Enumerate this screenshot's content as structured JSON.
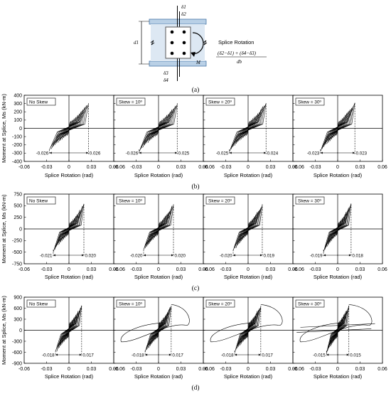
{
  "figure": {
    "panel_labels": [
      "(a)",
      "(b)",
      "(c)",
      "(d)"
    ]
  },
  "detail": {
    "title": "Splice Rotation",
    "formula_numerator": "(δ2−δ1) + (δ4−δ3)",
    "formula_denominator": "db",
    "labels": {
      "d1": "δ1",
      "d2": "δ2",
      "d3": "δ3",
      "d4": "δ4",
      "depth": "d1",
      "moment": "M"
    },
    "colors": {
      "flange_fill": "#b9d0e6",
      "flange_line": "#4a78a8",
      "plate": "#555555"
    }
  },
  "chart_data": [
    {
      "type": "line",
      "group": "(b)",
      "ylabel": "Moment at Splice, Ms (kN-m)",
      "xlabel": "Splice Rotation (rad)",
      "xlim": [
        -0.06,
        0.06
      ],
      "ylim": [
        -400,
        400
      ],
      "xticks": [
        "-0.06",
        "-0.03",
        "0",
        "0.03",
        "0.06"
      ],
      "yticks": [
        "400",
        "300",
        "200",
        "100",
        "0",
        "-100",
        "-200",
        "-300",
        "-400"
      ],
      "yticks_num": [
        400,
        300,
        200,
        100,
        0,
        -100,
        -200,
        -300,
        -400
      ],
      "grid": false,
      "panels": [
        {
          "label": "No Skew",
          "min_rot": "-0.026",
          "max_rot": "0.026",
          "min_val": -0.026,
          "max_val": 0.026,
          "peak": 320,
          "base": 80,
          "wild": false
        },
        {
          "label": "Skew = 10º",
          "min_rot": "-0.026",
          "max_rot": "0.025",
          "min_val": -0.026,
          "max_val": 0.025,
          "peak": 320,
          "base": 80,
          "wild": false
        },
        {
          "label": "Skew = 20º",
          "min_rot": "-0.025",
          "max_rot": "0.024",
          "min_val": -0.025,
          "max_val": 0.024,
          "peak": 320,
          "base": 80,
          "wild": false
        },
        {
          "label": "Skew = 30º",
          "min_rot": "-0.023",
          "max_rot": "0.023",
          "min_val": -0.023,
          "max_val": 0.023,
          "peak": 320,
          "base": 80,
          "wild": false
        }
      ]
    },
    {
      "type": "line",
      "group": "(c)",
      "ylabel": "Moment at Splice, Ms (kN-m)",
      "xlabel": "Splice Rotation (rad)",
      "xlim": [
        -0.06,
        0.06
      ],
      "ylim": [
        -750,
        750
      ],
      "xticks": [
        "-0.06",
        "-0.03",
        "0",
        "0.03",
        "0.06"
      ],
      "yticks": [
        "750",
        "500",
        "250",
        "0",
        "-250",
        "-500",
        "-750"
      ],
      "yticks_num": [
        750,
        500,
        250,
        0,
        -250,
        -500,
        -750
      ],
      "grid": false,
      "panels": [
        {
          "label": "No Skew",
          "min_rot": "-0.021",
          "max_rot": "0.020",
          "min_val": -0.021,
          "max_val": 0.02,
          "peak": 560,
          "base": 130,
          "wild": false
        },
        {
          "label": "Skew = 10º",
          "min_rot": "-0.020",
          "max_rot": "0.020",
          "min_val": -0.02,
          "max_val": 0.02,
          "peak": 560,
          "base": 130,
          "wild": false
        },
        {
          "label": "Skew = 20º",
          "min_rot": "-0.020",
          "max_rot": "0.019",
          "min_val": -0.02,
          "max_val": 0.019,
          "peak": 560,
          "base": 130,
          "wild": false
        },
        {
          "label": "Skew = 30º",
          "min_rot": "-0.019",
          "max_rot": "0.018",
          "min_val": -0.019,
          "max_val": 0.018,
          "peak": 560,
          "base": 130,
          "wild": false
        }
      ]
    },
    {
      "type": "line",
      "group": "(d)",
      "ylabel": "Moment at Splice, Ms (kN-m)",
      "xlabel": "Splice Rotation (rad)",
      "xlim": [
        -0.06,
        0.06
      ],
      "ylim": [
        -900,
        900
      ],
      "xticks": [
        "-0.06",
        "-0.03",
        "0",
        "0.03",
        "0.06"
      ],
      "yticks": [
        "900",
        "600",
        "300",
        "0",
        "-300",
        "-600",
        "-900"
      ],
      "yticks_num": [
        900,
        600,
        300,
        0,
        -300,
        -600,
        -900
      ],
      "grid": false,
      "panels": [
        {
          "label": "No Skew",
          "min_rot": "-0.018",
          "max_rot": "0.017",
          "min_val": -0.018,
          "max_val": 0.017,
          "peak": 700,
          "base": 200,
          "wild": false
        },
        {
          "label": "Skew = 10º",
          "min_rot": "-0.018",
          "max_rot": "0.017",
          "min_val": -0.018,
          "max_val": 0.017,
          "peak": 700,
          "base": 200,
          "wild": true
        },
        {
          "label": "Skew = 20º",
          "min_rot": "-0.018",
          "max_rot": "0.017",
          "min_val": -0.018,
          "max_val": 0.017,
          "peak": 700,
          "base": 200,
          "wild": true
        },
        {
          "label": "Skew = 30º",
          "min_rot": "-0.015",
          "max_rot": "0.015",
          "min_val": -0.015,
          "max_val": 0.015,
          "peak": 700,
          "base": 200,
          "wild": true
        }
      ]
    }
  ]
}
